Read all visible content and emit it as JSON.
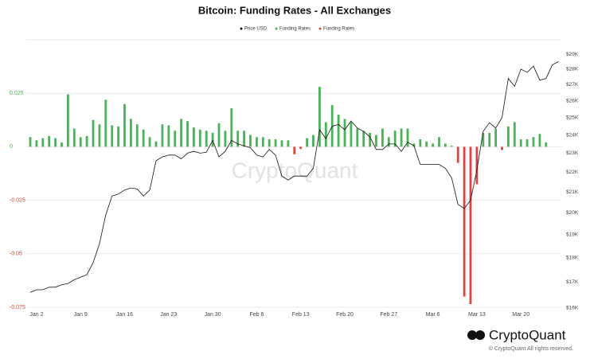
{
  "chart_data": {
    "type": "bar",
    "title": "Bitcoin: Funding Rates - All Exchanges",
    "watermark": "CryptoQuant",
    "brand": "CryptoQuant",
    "copyright": "© CryptoQuant All rights reserved.",
    "categories": [
      null,
      "Jan 2",
      null,
      null,
      null,
      null,
      null,
      null,
      "Jan 9",
      null,
      null,
      null,
      null,
      null,
      null,
      "Jan 16",
      null,
      null,
      null,
      null,
      null,
      null,
      "Jan 23",
      null,
      null,
      null,
      null,
      null,
      null,
      "Jan 30",
      null,
      null,
      null,
      null,
      null,
      null,
      "Feb 6",
      null,
      null,
      null,
      null,
      null,
      null,
      "Feb 13",
      null,
      null,
      null,
      null,
      null,
      null,
      "Feb 20",
      null,
      null,
      null,
      null,
      null,
      null,
      "Feb 27",
      null,
      null,
      null,
      null,
      null,
      null,
      "Mar 6",
      null,
      null,
      null,
      null,
      null,
      null,
      "Mar 13",
      null,
      null,
      null,
      null,
      null,
      null,
      "Mar 20",
      null,
      null,
      null,
      null,
      null,
      null
    ],
    "ylim": [
      -0.075,
      0.05
    ],
    "yticks": [
      0.025,
      0,
      -0.025,
      -0.05,
      -0.075
    ],
    "y2lim": [
      16000,
      30000
    ],
    "y2log": true,
    "y2ticks": [
      {
        "value": 16000,
        "label": "$16K"
      },
      {
        "value": 17000,
        "label": "$17K"
      },
      {
        "value": 18000,
        "label": "$18K"
      },
      {
        "value": 19000,
        "label": "$19K"
      },
      {
        "value": 20000,
        "label": "$20K"
      },
      {
        "value": 21000,
        "label": "$21K"
      },
      {
        "value": 22000,
        "label": "$22K"
      },
      {
        "value": 23000,
        "label": "$23K"
      },
      {
        "value": 24000,
        "label": "$24K"
      },
      {
        "value": 25000,
        "label": "$25K"
      },
      {
        "value": 26000,
        "label": "$26K"
      },
      {
        "value": 27000,
        "label": "$27K"
      },
      {
        "value": 28000,
        "label": "$28K"
      },
      {
        "value": 29000,
        "label": "$29K"
      }
    ],
    "grid": true,
    "legend": "top",
    "series": [
      {
        "name": "Price USD",
        "color": "#111111",
        "axis": "y2",
        "kind": "line",
        "values": [
          16600,
          16700,
          16700,
          16800,
          16800,
          16900,
          16950,
          17100,
          17200,
          17300,
          17800,
          18600,
          19900,
          20800,
          20900,
          21100,
          21200,
          21150,
          20800,
          21100,
          22600,
          22800,
          22900,
          22900,
          22700,
          23000,
          23100,
          23000,
          23050,
          23700,
          22800,
          23100,
          23700,
          23500,
          23400,
          23300,
          22900,
          22800,
          23200,
          22900,
          21800,
          21600,
          21800,
          21800,
          21800,
          22200,
          24300,
          23800,
          24500,
          24600,
          24300,
          24800,
          24400,
          24200,
          23900,
          23200,
          23200,
          23500,
          23500,
          23100,
          23600,
          23400,
          22400,
          22400,
          22400,
          22400,
          22200,
          21700,
          20400,
          20200,
          20600,
          22100,
          24200,
          24700,
          24400,
          25000,
          27400,
          26900,
          28000,
          27800,
          28200,
          27300,
          27400,
          28300,
          28500
        ]
      },
      {
        "name": "Funding Rates",
        "color": "#4cb05a",
        "kind": "bar",
        "values": [
          0.0045,
          0.003,
          0.004,
          0.005,
          0.004,
          0.002,
          0.0245,
          0.0085,
          0.0045,
          0.005,
          0.0125,
          0.0105,
          0.022,
          0.01,
          0.0095,
          0.02,
          0.013,
          0.0105,
          0.008,
          0.0045,
          0.0025,
          0.0105,
          0.01,
          0.0075,
          0.013,
          0.012,
          0.009,
          0.008,
          0.0075,
          0.0065,
          0.011,
          0.0075,
          0.018,
          0.0075,
          0.0075,
          0.0055,
          0.0045,
          0.0045,
          0.0035,
          0.0035,
          0.003,
          0.003,
          null,
          null,
          0.004,
          0.0055,
          0.028,
          0.0115,
          0.0195,
          0.015,
          0.013,
          0.0115,
          0.0085,
          0.0075,
          0.0065,
          0.0055,
          0.0085,
          0.0045,
          0.0075,
          0.0085,
          0.0085,
          0.0015,
          0.0035,
          0.0025,
          0.0015,
          0.0045,
          0.0015,
          0.0005,
          null,
          null,
          null,
          null,
          0.0065,
          0.0065,
          0.0085,
          null,
          0.0095,
          0.0115,
          0.0035,
          0.0035,
          0.0045,
          0.006,
          0.002,
          null,
          null
        ]
      },
      {
        "name": "Funding Rates",
        "color": "#d9453a",
        "kind": "bar",
        "values": [
          null,
          null,
          null,
          null,
          null,
          null,
          null,
          null,
          null,
          null,
          null,
          null,
          null,
          null,
          null,
          null,
          null,
          null,
          null,
          null,
          null,
          null,
          null,
          null,
          null,
          null,
          null,
          null,
          null,
          null,
          null,
          null,
          null,
          null,
          null,
          null,
          null,
          null,
          null,
          null,
          null,
          null,
          -0.0035,
          -0.001,
          null,
          null,
          null,
          null,
          null,
          null,
          null,
          null,
          null,
          null,
          null,
          null,
          null,
          null,
          null,
          null,
          null,
          null,
          null,
          null,
          null,
          null,
          null,
          null,
          -0.0075,
          -0.07,
          -0.0735,
          -0.0175,
          null,
          null,
          null,
          -0.0015,
          null,
          null,
          null,
          null,
          null,
          null,
          null,
          null,
          null
        ]
      }
    ]
  }
}
